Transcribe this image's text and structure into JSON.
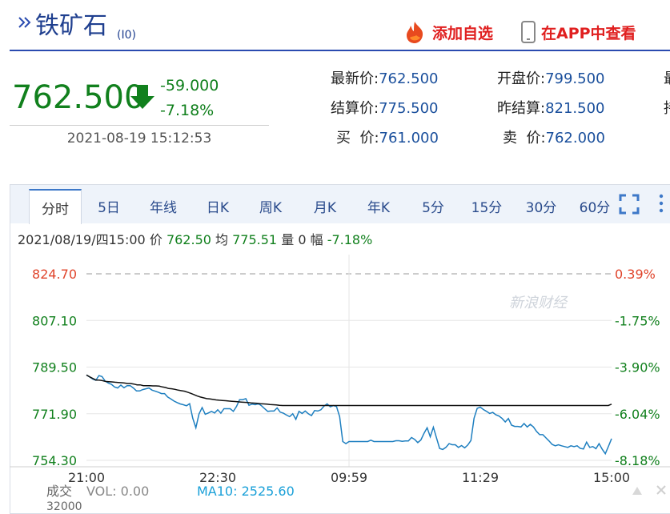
{
  "header": {
    "title": "铁矿石",
    "code": "(I0)",
    "add_watchlist_label": "添加自选",
    "view_in_app_label": "在APP中查看",
    "colors": {
      "title": "#1f3f8f",
      "action": "#e02020",
      "down": "#11801d"
    }
  },
  "quote": {
    "price": "762.500",
    "change": "-59.000",
    "change_pct": "-7.18%",
    "datetime": "2021-08-19 15:12:53",
    "rows": [
      {
        "label": "最新价:",
        "value": "762.500"
      },
      {
        "label": "开盘价:",
        "value": "799.500"
      },
      {
        "label": "结算价:",
        "value": "775.500"
      },
      {
        "label": "昨结算:",
        "value": "821.500"
      },
      {
        "label": "买  价:",
        "value": "761.000"
      },
      {
        "label": "卖  价:",
        "value": "762.000"
      }
    ],
    "cutoff_labels": [
      "最",
      "持"
    ]
  },
  "tabs": [
    "分时",
    "5日",
    "年线",
    "日K",
    "周K",
    "月K",
    "年K",
    "5分",
    "15分",
    "30分",
    "60分"
  ],
  "active_tab": "分时",
  "info_bar": {
    "date": "2021/08/19/四15:00",
    "price_label": "价",
    "price": "762.50",
    "avg_label": "均",
    "avg": "775.51",
    "vol_label": "量",
    "vol": "0",
    "range_label": "幅",
    "range": "-7.18%"
  },
  "watermark": "新浪财经",
  "volume": {
    "label": "成交",
    "vol_text": "VOL: 0.00",
    "ma_text": "MA10: 2525.60",
    "axis_top": "32000"
  },
  "chart_data": {
    "type": "line",
    "y_left_ticks": [
      "824.70",
      "807.10",
      "789.50",
      "771.90",
      "754.30"
    ],
    "y_right_ticks": [
      "0.39%",
      "-1.75%",
      "-3.90%",
      "-6.04%",
      "-8.18%"
    ],
    "x_ticks": [
      "21:00",
      "22:30",
      "09:59",
      "11:29",
      "15:00"
    ],
    "ylim": [
      754.3,
      824.7
    ],
    "reference_price": 821.5,
    "colors": {
      "price": "#1e7fc0",
      "avg": "#111111",
      "up": "#e0442b",
      "down": "#11801d"
    },
    "series": [
      {
        "values": [
          786.5,
          785.8,
          785.0,
          784.5,
          786.3,
          785.9,
          784.2,
          783.5,
          783.0,
          782.0,
          781.6,
          782.7,
          781.7,
          782.5,
          782.5,
          781.6,
          780.5,
          780.5,
          781.0,
          781.3,
          781.6,
          780.8,
          780.4,
          780.0,
          779.5,
          779.5,
          778.2,
          777.5,
          776.7,
          776.1,
          775.6,
          775.3,
          774.9,
          775.7,
          770.2,
          766.6,
          771.8,
          774.2,
          771.7,
          772.2,
          772.8,
          772.2,
          773.4,
          772.1,
          773.8,
          773.8,
          773.8,
          772.8,
          774.6,
          777.2,
          777.2,
          777.6,
          775.1,
          775.5,
          775.3,
          775.7,
          774.9,
          773.8,
          772.8,
          772.9,
          772.9,
          774.1,
          772.5,
          772.1,
          771.4,
          770.8,
          771.9,
          769.8,
          772.8,
          772.0,
          772.9,
          771.9,
          771.2,
          773.1,
          772.9,
          773.4,
          774.8,
          775.6,
          774.5,
          775.0,
          774.6,
          770.8,
          761.4,
          760.6,
          761.4,
          761.4,
          761.4,
          761.4,
          761.4,
          761.4,
          761.4,
          761.9,
          761.4,
          761.4,
          761.4,
          761.4,
          761.4,
          761.4,
          761.4,
          761.7,
          761.7,
          761.5,
          761.6,
          761.6,
          762.9,
          762.2,
          761.0,
          762.0,
          764.5,
          766.6,
          763.2,
          766.8,
          762.8,
          758.8,
          758.4,
          759.2,
          760.6,
          760.2,
          760.2,
          759.2,
          759.9,
          759.0,
          760.1,
          761.8,
          770.2,
          773.9,
          774.4,
          773.5,
          772.8,
          772.0,
          772.4,
          771.5,
          771.0,
          770.1,
          768.8,
          770.1,
          767.6,
          767.1,
          767.1,
          766.9,
          768.2,
          766.9,
          767.9,
          766.9,
          765.2,
          764.0,
          764.0,
          762.8,
          761.6,
          760.3,
          759.8,
          760.2,
          759.8,
          759.5,
          759.2,
          759.8,
          759.5,
          759.8,
          758.8,
          758.6,
          761.2,
          759.2,
          759.5,
          758.7,
          760.6,
          758.5,
          756.8,
          759.6,
          762.5
        ]
      },
      {
        "values": [
          786.5,
          785.8,
          785.2,
          784.6,
          784.6,
          784.4,
          784.1,
          784.0,
          783.9,
          783.8,
          783.7,
          783.6,
          783.5,
          783.3,
          783.3,
          783.1,
          782.8,
          782.8,
          782.5,
          782.5,
          782.5,
          782.4,
          782.4,
          782.3,
          782.0,
          781.8,
          781.4,
          781.3,
          781.1,
          780.8,
          780.6,
          780.4,
          780.0,
          779.6,
          779.1,
          778.6,
          778.2,
          777.9,
          777.6,
          777.5,
          777.3,
          777.1,
          777.0,
          776.9,
          776.8,
          776.7,
          776.6,
          776.5,
          776.4,
          776.3,
          776.2,
          776.1,
          776.0,
          775.9,
          775.8,
          775.7,
          775.6,
          775.5,
          775.4,
          775.3,
          775.2,
          775.1,
          775.0,
          775.0,
          775.0,
          775.0,
          775.0,
          775.0,
          775.0,
          775.0,
          775.0,
          775.0,
          775.0,
          775.0,
          775.0,
          775.0,
          775.0,
          775.0,
          775.0,
          775.0,
          775.0,
          775.0,
          775.0,
          775.0,
          775.0,
          775.0,
          775.0,
          775.0,
          775.0,
          775.0,
          775.0,
          775.0,
          775.0,
          775.0,
          775.0,
          775.0,
          775.0,
          775.0,
          775.0,
          775.0,
          775.0,
          775.0,
          775.0,
          775.0,
          775.0,
          775.0,
          775.0,
          775.0,
          775.0,
          775.0,
          775.0,
          775.0,
          775.0,
          775.0,
          775.0,
          775.0,
          775.0,
          775.0,
          775.0,
          775.0,
          775.0,
          775.0,
          775.0,
          775.0,
          775.0,
          775.0,
          775.0,
          775.0,
          775.0,
          775.0,
          775.0,
          775.0,
          775.0,
          775.0,
          775.0,
          775.0,
          775.0,
          775.0,
          775.0,
          775.0,
          775.0,
          775.0,
          775.0,
          775.0,
          775.0,
          775.0,
          775.0,
          775.0,
          775.0,
          775.0,
          775.0,
          775.0,
          775.0,
          775.0,
          775.0,
          775.0,
          775.0,
          775.0,
          775.0,
          775.0,
          775.0,
          775.0,
          775.0,
          775.0,
          775.0,
          775.0,
          775.5
        ]
      }
    ]
  }
}
